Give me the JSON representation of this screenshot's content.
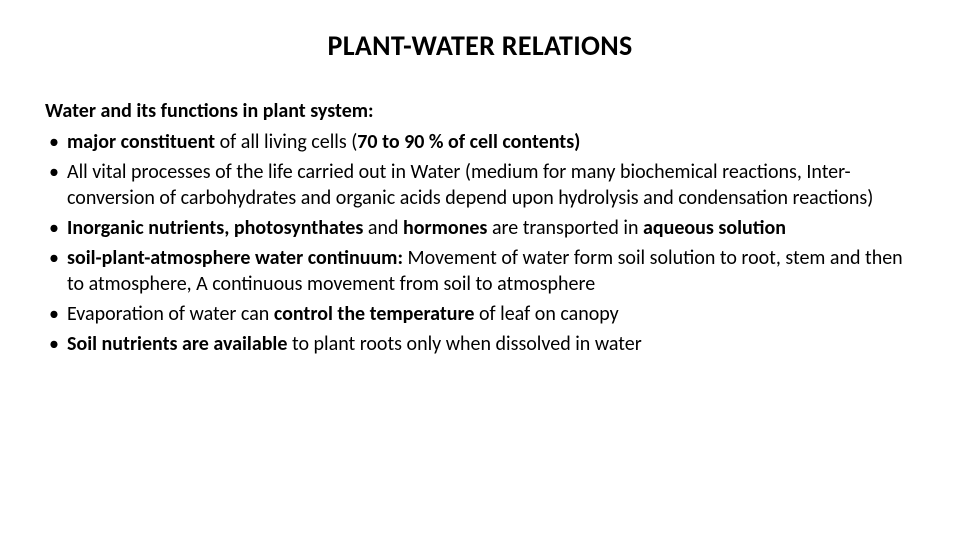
{
  "slide": {
    "title": "PLANT-WATER RELATIONS",
    "subheading": "Water and its functions in plant system:",
    "bullets": [
      {
        "segments": [
          {
            "t": "major constituent ",
            "bold": true
          },
          {
            "t": "of all living cells (",
            "bold": false
          },
          {
            "t": "70 to 90 % of cell contents)",
            "bold": true
          }
        ]
      },
      {
        "segments": [
          {
            "t": "All vital processes of the life carried out in Water (medium for many biochemical reactions, Inter-conversion of carbohydrates and organic acids depend upon hydrolysis and condensation reactions)",
            "bold": false
          }
        ]
      },
      {
        "segments": [
          {
            "t": "Inorganic nutrients, photosynthates ",
            "bold": true
          },
          {
            "t": "and ",
            "bold": false
          },
          {
            "t": "hormones ",
            "bold": true
          },
          {
            "t": "are transported in ",
            "bold": false
          },
          {
            "t": "aqueous solution",
            "bold": true
          }
        ]
      },
      {
        "segments": [
          {
            "t": "soil-plant-atmosphere water continuum: ",
            "bold": true
          },
          {
            "t": "Movement of water form soil solution to root, stem and then to atmosphere, A continuous movement from soil to atmosphere",
            "bold": false
          }
        ]
      },
      {
        "segments": [
          {
            "t": "Evaporation of water can ",
            "bold": false
          },
          {
            "t": "control the temperature ",
            "bold": true
          },
          {
            "t": "of leaf on canopy",
            "bold": false
          }
        ]
      },
      {
        "segments": [
          {
            "t": "Soil nutrients are available ",
            "bold": true
          },
          {
            "t": "to plant roots only when dissolved in water",
            "bold": false
          }
        ]
      }
    ]
  },
  "style": {
    "background_color": "#ffffff",
    "text_color": "#000000",
    "title_fontsize": 28,
    "body_fontsize": 20,
    "font_family": "Calibri"
  }
}
